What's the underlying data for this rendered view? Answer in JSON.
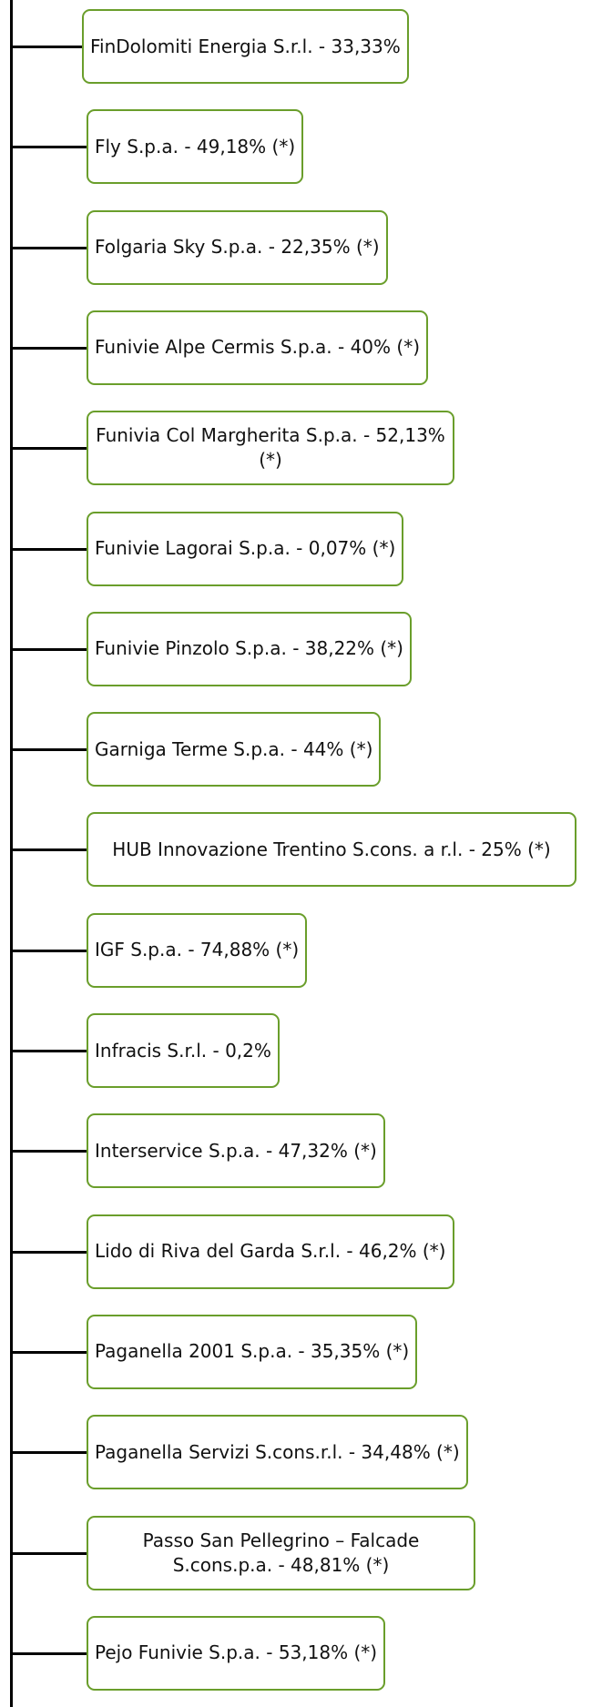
{
  "nodes": [
    {
      "label": "FinDolomiti Energia S.r.l. - 33,33%"
    },
    {
      "label": "Fly S.p.a. - 49,18% (*)"
    },
    {
      "label": "Folgaria Sky S.p.a. - 22,35% (*)"
    },
    {
      "label": "Funivie Alpe Cermis S.p.a. - 40% (*)"
    },
    {
      "label": "Funivia Col Margherita S.p.a. - 52,13% (*)"
    },
    {
      "label": "Funivie Lagorai S.p.a. - 0,07% (*)"
    },
    {
      "label": "Funivie Pinzolo S.p.a. - 38,22% (*)"
    },
    {
      "label": "Garniga Terme S.p.a. - 44% (*)"
    },
    {
      "label": "HUB Innovazione Trentino S.cons. a r.l. - 25% (*)"
    },
    {
      "label": "IGF S.p.a. - 74,88% (*)"
    },
    {
      "label": "Infracis S.r.l. - 0,2%"
    },
    {
      "label": "Interservice S.p.a. - 47,32% (*)"
    },
    {
      "label": "Lido di Riva del Garda S.r.l. - 46,2% (*)"
    },
    {
      "label": "Paganella 2001 S.p.a. - 35,35% (*)"
    },
    {
      "label": "Paganella Servizi S.cons.r.l. - 34,48% (*)"
    },
    {
      "label": "Passo San Pellegrino – Falcade S.cons.p.a. - 48,81% (*)"
    },
    {
      "label": "Pejo Funivie S.p.a. - 53,18% (*)"
    }
  ]
}
